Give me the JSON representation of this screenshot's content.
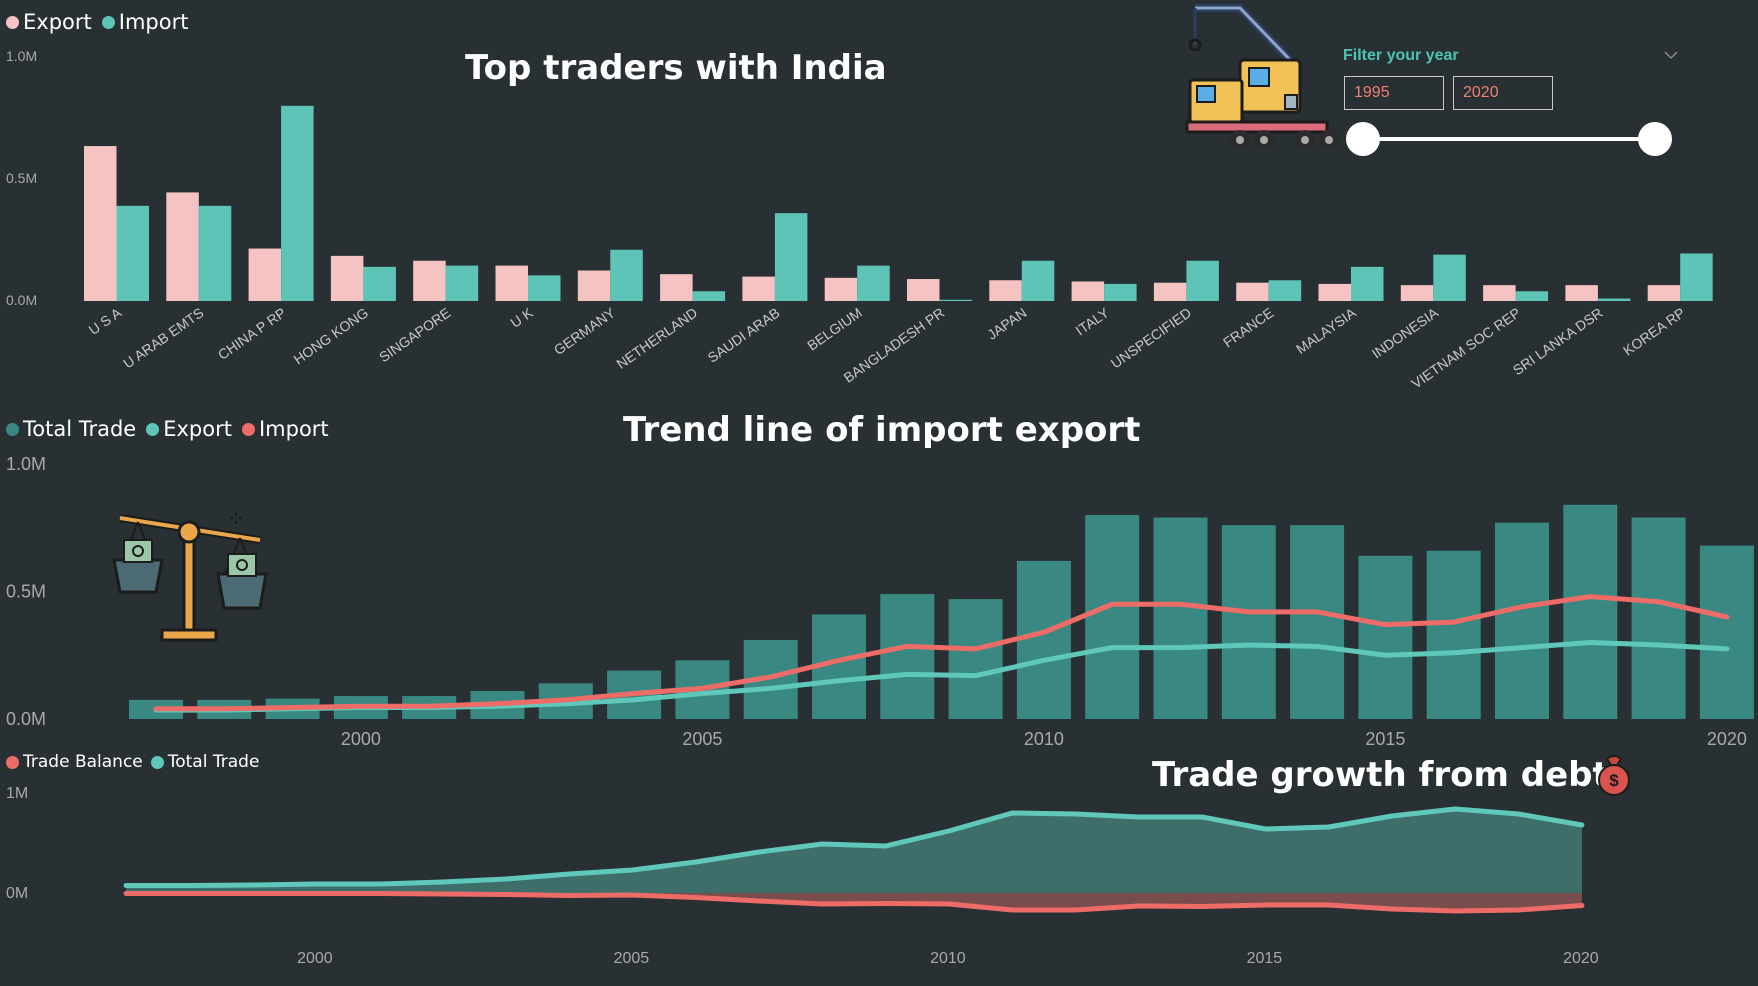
{
  "colors": {
    "export_pink": "#f5c3c2",
    "import_teal": "#5ec4b8",
    "total_bar": "#398982",
    "line_red": "#ee6c68",
    "line_teal": "#60c8bb",
    "area_fill": "#3e6e69",
    "neg_fill": "#7a4d4d",
    "bg": "#283033",
    "axis_text": "#a9a9a9"
  },
  "chart1": {
    "legend": [
      {
        "label": "Export",
        "color": "#f5c3c2"
      },
      {
        "label": "Import",
        "color": "#5ec4b8"
      }
    ],
    "title": "Top traders with India",
    "y_ticks": [
      "1.0M",
      "0.5M",
      "0.0M"
    ]
  },
  "slicer": {
    "title": "Filter your year",
    "from": "1995",
    "to": "2020",
    "chevron": "chevron-down-icon"
  },
  "chart2": {
    "legend": [
      {
        "label": "Total Trade",
        "color": "#398982"
      },
      {
        "label": "Export",
        "color": "#5ec4b8"
      },
      {
        "label": "Import",
        "color": "#ee6c68"
      }
    ],
    "title": "Trend line of import export",
    "y_ticks": [
      "1.0M",
      "0.5M",
      "0.0M"
    ],
    "x_ticks": [
      "2000",
      "2005",
      "2010",
      "2015",
      "2020"
    ]
  },
  "chart3": {
    "legend": [
      {
        "label": "Trade Balance",
        "color": "#ee6c68"
      },
      {
        "label": "Total Trade",
        "color": "#60c8bb"
      }
    ],
    "title": "Trade growth from debt",
    "y_ticks": [
      "1M",
      "0M"
    ],
    "x_ticks": [
      "2000",
      "2005",
      "2010",
      "2015",
      "2020"
    ]
  },
  "chart_data": [
    {
      "type": "bar",
      "title": "Top traders with India",
      "categories": [
        "U S A",
        "U ARAB EMTS",
        "CHINA P RP",
        "HONG KONG",
        "SINGAPORE",
        "U K",
        "GERMANY",
        "NETHERLAND",
        "SAUDI ARAB",
        "BELGIUM",
        "BANGLADESH PR",
        "JAPAN",
        "ITALY",
        "UNSPECIFIED",
        "FRANCE",
        "MALAYSIA",
        "INDONESIA",
        "VIETNAM SOC REP",
        "SRI LANKA DSR",
        "KOREA RP"
      ],
      "series": [
        {
          "name": "Export",
          "values": [
            0.635,
            0.445,
            0.215,
            0.185,
            0.165,
            0.145,
            0.125,
            0.11,
            0.1,
            0.095,
            0.09,
            0.085,
            0.08,
            0.075,
            0.075,
            0.07,
            0.065,
            0.065,
            0.065,
            0.065
          ]
        },
        {
          "name": "Import",
          "values": [
            0.39,
            0.39,
            0.8,
            0.14,
            0.145,
            0.105,
            0.21,
            0.04,
            0.36,
            0.145,
            0.005,
            0.165,
            0.07,
            0.165,
            0.085,
            0.14,
            0.19,
            0.04,
            0.01,
            0.195
          ]
        }
      ],
      "ylim": [
        0,
        1.0
      ],
      "unit": "M",
      "legend_position": "top-left",
      "grid": false
    },
    {
      "type": "bar",
      "title": "Trend line of import export",
      "x": [
        1997,
        1998,
        1999,
        2000,
        2001,
        2002,
        2003,
        2004,
        2005,
        2006,
        2007,
        2008,
        2009,
        2010,
        2011,
        2012,
        2013,
        2014,
        2015,
        2016,
        2017,
        2018,
        2019,
        2020
      ],
      "series": [
        {
          "name": "Total Trade",
          "type": "bar",
          "values": [
            0.075,
            0.075,
            0.08,
            0.09,
            0.09,
            0.11,
            0.14,
            0.19,
            0.23,
            0.31,
            0.41,
            0.49,
            0.47,
            0.62,
            0.8,
            0.79,
            0.76,
            0.76,
            0.64,
            0.66,
            0.77,
            0.84,
            0.79,
            0.68
          ]
        },
        {
          "name": "Export",
          "type": "line",
          "values": [
            0.035,
            0.035,
            0.04,
            0.045,
            0.045,
            0.05,
            0.06,
            0.075,
            0.1,
            0.12,
            0.15,
            0.175,
            0.17,
            0.23,
            0.28,
            0.28,
            0.29,
            0.285,
            0.25,
            0.26,
            0.28,
            0.3,
            0.29,
            0.275
          ]
        },
        {
          "name": "Import",
          "type": "line",
          "values": [
            0.04,
            0.04,
            0.045,
            0.05,
            0.05,
            0.06,
            0.075,
            0.1,
            0.12,
            0.165,
            0.23,
            0.285,
            0.275,
            0.34,
            0.45,
            0.45,
            0.42,
            0.42,
            0.37,
            0.38,
            0.44,
            0.48,
            0.46,
            0.4
          ]
        }
      ],
      "ylim": [
        0,
        1.0
      ],
      "unit": "M",
      "legend_position": "top-left",
      "grid": false
    },
    {
      "type": "area",
      "title": "Trade growth from debt",
      "x": [
        1997,
        1998,
        1999,
        2000,
        2001,
        2002,
        2003,
        2004,
        2005,
        2006,
        2007,
        2008,
        2009,
        2010,
        2011,
        2012,
        2013,
        2014,
        2015,
        2016,
        2017,
        2018,
        2019,
        2020
      ],
      "series": [
        {
          "name": "Total Trade",
          "values": [
            0.075,
            0.075,
            0.08,
            0.09,
            0.09,
            0.11,
            0.14,
            0.19,
            0.23,
            0.31,
            0.41,
            0.49,
            0.47,
            0.62,
            0.8,
            0.79,
            0.76,
            0.76,
            0.64,
            0.66,
            0.77,
            0.84,
            0.79,
            0.68
          ]
        },
        {
          "name": "Trade Balance",
          "values": [
            -0.005,
            -0.005,
            -0.005,
            -0.005,
            -0.005,
            -0.01,
            -0.015,
            -0.025,
            -0.02,
            -0.045,
            -0.08,
            -0.11,
            -0.105,
            -0.11,
            -0.17,
            -0.17,
            -0.13,
            -0.135,
            -0.12,
            -0.12,
            -0.16,
            -0.18,
            -0.17,
            -0.125
          ]
        }
      ],
      "ylim": [
        -0.2,
        1.0
      ],
      "unit": "M",
      "legend_position": "top-left",
      "grid": false
    }
  ]
}
